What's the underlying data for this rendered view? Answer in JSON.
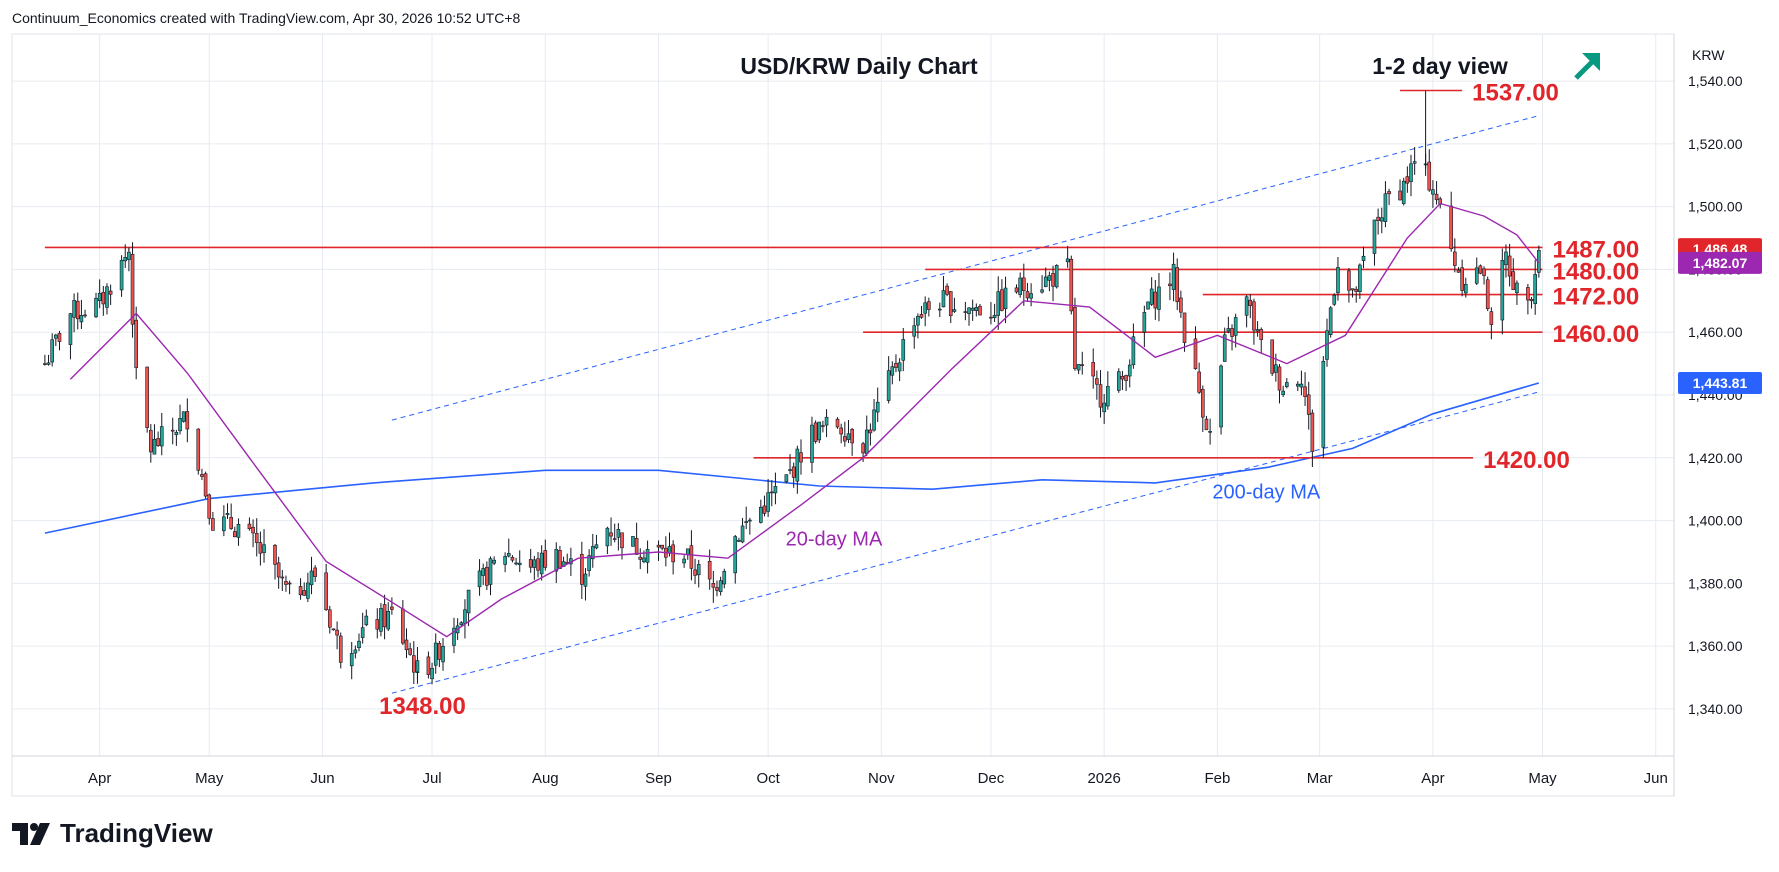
{
  "header": {
    "credit": "Continuum_Economics created with TradingView.com, Apr 30, 2026 10:52 UTC+8"
  },
  "brand": {
    "name": "TradingView",
    "logo_icon": "tradingview-logo-icon"
  },
  "colors": {
    "up": "#26a69a",
    "down": "#ef5350",
    "level": "#e0262b",
    "ma20": "#9c27b0",
    "ma200": "#2962ff",
    "channel": "#2962ff",
    "arrow": "#089981",
    "grid": "#e6ebf1"
  },
  "chart_data": {
    "type": "candlestick",
    "title": "USD/KRW Daily Chart",
    "subtitle": "1-2 day view",
    "view_icon": "arrow-up-right-icon",
    "currency_label": "KRW",
    "ylim": [
      1325,
      1555
    ],
    "y_ticks": [
      "1,340.00",
      "1,360.00",
      "1,380.00",
      "1,400.00",
      "1,420.00",
      "1,440.00",
      "1,460.00",
      "1,480.00",
      "1,500.00",
      "1,520.00",
      "1,540.00"
    ],
    "x_ticks": [
      "Apr",
      "May",
      "Jun",
      "Jul",
      "Aug",
      "Sep",
      "Oct",
      "Nov",
      "Dec",
      "2026",
      "Feb",
      "Mar",
      "Apr",
      "May",
      "Jun"
    ],
    "price_badges": [
      {
        "label": "1,486.48",
        "value": 1486.48,
        "color": "#e0262b"
      },
      {
        "label": "1,482.07",
        "value": 1482.07,
        "color": "#9c27b0"
      },
      {
        "label": "1,443.81",
        "value": 1443.81,
        "color": "#2962ff"
      }
    ],
    "levels": [
      {
        "label": "1537.00",
        "value": 1537,
        "from": "2026-03-23",
        "to": "2026-04-09"
      },
      {
        "label": "1487.00",
        "value": 1487,
        "from": "2025-03-17",
        "to": "2026-05-01"
      },
      {
        "label": "1480.00",
        "value": 1480,
        "from": "2025-11-13",
        "to": "2026-05-01"
      },
      {
        "label": "1472.00",
        "value": 1472,
        "from": "2026-01-28",
        "to": "2026-05-01"
      },
      {
        "label": "1460.00",
        "value": 1460,
        "from": "2025-10-27",
        "to": "2026-05-01"
      },
      {
        "label": "1420.00",
        "value": 1420,
        "from": "2025-09-27",
        "to": "2026-04-12"
      }
    ],
    "annotations": [
      {
        "label": "1348.00",
        "date": "2025-06-28",
        "value": 1348
      }
    ],
    "ma_labels": [
      {
        "label": "20-day MA",
        "date": "2025-10-14",
        "value": 1392
      },
      {
        "label": "200-day MA",
        "date": "2026-02-27",
        "value": 1407
      }
    ],
    "channel_lines": [
      {
        "from": [
          "2025-06-20",
          1432
        ],
        "to": [
          "2026-04-30",
          1529
        ]
      },
      {
        "from": [
          "2025-06-20",
          1345
        ],
        "to": [
          "2026-04-30",
          1441
        ]
      }
    ],
    "anchors": [
      [
        "2025-03-17",
        1450
      ],
      [
        "2025-03-24",
        1466
      ],
      [
        "2025-04-01",
        1469
      ],
      [
        "2025-04-09",
        1486
      ],
      [
        "2025-04-11",
        1445
      ],
      [
        "2025-04-15",
        1423
      ],
      [
        "2025-04-25",
        1433
      ],
      [
        "2025-05-02",
        1400
      ],
      [
        "2025-05-09",
        1398
      ],
      [
        "2025-05-16",
        1389
      ],
      [
        "2025-05-23",
        1376
      ],
      [
        "2025-05-30",
        1383
      ],
      [
        "2025-06-06",
        1358
      ],
      [
        "2025-06-13",
        1366
      ],
      [
        "2025-06-20",
        1370
      ],
      [
        "2025-06-27",
        1352
      ],
      [
        "2025-07-01",
        1355
      ],
      [
        "2025-07-07",
        1368
      ],
      [
        "2025-07-14",
        1380
      ],
      [
        "2025-07-21",
        1390
      ],
      [
        "2025-07-28",
        1385
      ],
      [
        "2025-08-04",
        1389
      ],
      [
        "2025-08-11",
        1383
      ],
      [
        "2025-08-18",
        1398
      ],
      [
        "2025-08-25",
        1392
      ],
      [
        "2025-09-01",
        1390
      ],
      [
        "2025-09-08",
        1389
      ],
      [
        "2025-09-16",
        1378
      ],
      [
        "2025-09-22",
        1395
      ],
      [
        "2025-09-29",
        1404
      ],
      [
        "2025-10-06",
        1413
      ],
      [
        "2025-10-13",
        1428
      ],
      [
        "2025-10-20",
        1431
      ],
      [
        "2025-10-27",
        1425
      ],
      [
        "2025-11-03",
        1444
      ],
      [
        "2025-11-10",
        1465
      ],
      [
        "2025-11-17",
        1470
      ],
      [
        "2025-11-24",
        1468
      ],
      [
        "2025-12-01",
        1467
      ],
      [
        "2025-12-08",
        1474
      ],
      [
        "2025-12-15",
        1476
      ],
      [
        "2025-12-22",
        1480
      ],
      [
        "2025-12-24",
        1449
      ],
      [
        "2025-12-31",
        1440
      ],
      [
        "2026-01-06",
        1445
      ],
      [
        "2026-01-13",
        1469
      ],
      [
        "2026-01-20",
        1478
      ],
      [
        "2026-01-23",
        1460
      ],
      [
        "2026-01-30",
        1427
      ],
      [
        "2026-02-03",
        1456
      ],
      [
        "2026-02-09",
        1470
      ],
      [
        "2026-02-13",
        1455
      ],
      [
        "2026-02-19",
        1443
      ],
      [
        "2026-02-24",
        1447
      ],
      [
        "2026-02-27",
        1424
      ],
      [
        "2026-03-03",
        1460
      ],
      [
        "2026-03-06",
        1483
      ],
      [
        "2026-03-10",
        1470
      ],
      [
        "2026-03-16",
        1494
      ],
      [
        "2026-03-20",
        1503
      ],
      [
        "2026-03-24",
        1507
      ],
      [
        "2026-03-27",
        1514
      ],
      [
        "2026-04-01",
        1507
      ],
      [
        "2026-04-06",
        1486
      ],
      [
        "2026-04-09",
        1477
      ],
      [
        "2026-04-14",
        1480
      ],
      [
        "2026-04-17",
        1465
      ],
      [
        "2026-04-21",
        1484
      ],
      [
        "2026-04-24",
        1473
      ],
      [
        "2026-04-28",
        1474
      ],
      [
        "2026-04-30",
        1486.48
      ]
    ],
    "ma20_points": [
      [
        "2025-03-24",
        1445
      ],
      [
        "2025-04-11",
        1466
      ],
      [
        "2025-04-25",
        1447
      ],
      [
        "2025-05-12",
        1420
      ],
      [
        "2025-06-02",
        1387
      ],
      [
        "2025-06-20",
        1374
      ],
      [
        "2025-07-05",
        1363
      ],
      [
        "2025-07-20",
        1375
      ],
      [
        "2025-08-10",
        1388
      ],
      [
        "2025-09-01",
        1390
      ],
      [
        "2025-09-20",
        1388
      ],
      [
        "2025-10-10",
        1405
      ],
      [
        "2025-10-27",
        1420
      ],
      [
        "2025-11-20",
        1448
      ],
      [
        "2025-12-10",
        1470
      ],
      [
        "2025-12-28",
        1468
      ],
      [
        "2026-01-15",
        1452
      ],
      [
        "2026-02-01",
        1459
      ],
      [
        "2026-02-20",
        1450
      ],
      [
        "2026-03-08",
        1459
      ],
      [
        "2026-03-25",
        1490
      ],
      [
        "2026-04-03",
        1501
      ],
      [
        "2026-04-15",
        1497
      ],
      [
        "2026-04-24",
        1491
      ],
      [
        "2026-04-30",
        1482.07
      ]
    ],
    "ma200_points": [
      [
        "2025-03-17",
        1396
      ],
      [
        "2025-05-01",
        1407
      ],
      [
        "2025-06-15",
        1412
      ],
      [
        "2025-08-01",
        1416
      ],
      [
        "2025-09-01",
        1416
      ],
      [
        "2025-10-15",
        1411
      ],
      [
        "2025-11-15",
        1410
      ],
      [
        "2025-12-15",
        1413
      ],
      [
        "2026-01-15",
        1412
      ],
      [
        "2026-02-15",
        1417
      ],
      [
        "2026-03-10",
        1423
      ],
      [
        "2026-04-01",
        1434
      ],
      [
        "2026-04-30",
        1443.81
      ]
    ]
  }
}
